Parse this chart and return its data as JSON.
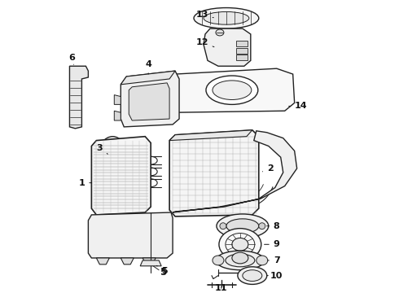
{
  "bg_color": "#ffffff",
  "line_color": "#222222",
  "figsize": [
    4.9,
    3.6
  ],
  "dpi": 100,
  "lw": 0.9
}
